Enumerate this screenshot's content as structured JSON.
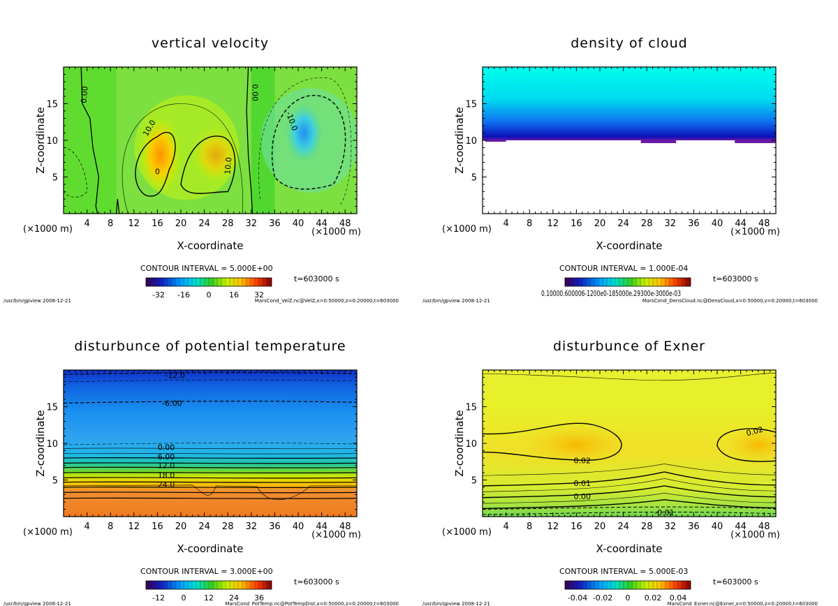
{
  "chart_data": [
    {
      "type": "heatmap",
      "title": "vertical velocity",
      "xlabel": "X-coordinate",
      "ylabel": "Z-coordinate",
      "x_unit_left": "(×1000 m)",
      "x_unit_right": "(×1000 m)",
      "xlim": [
        0,
        50
      ],
      "ylim": [
        0,
        20
      ],
      "xticks": [
        "4",
        "8",
        "12",
        "16",
        "20",
        "24",
        "28",
        "32",
        "36",
        "40",
        "44",
        "48"
      ],
      "yticks": [
        "5",
        "10",
        "15"
      ],
      "contour_labels": [
        "0.00",
        "0.00",
        "10.0",
        "10.0",
        "-10.0",
        "0"
      ],
      "contour_interval": "CONTOUR INTERVAL = 5.000E+00",
      "colorbar_ticks": [
        "-32",
        "-16",
        "0",
        "16",
        "32"
      ],
      "time": "t=603000 s",
      "footer_left": "/usr/bin/gpview  2008-12-21",
      "footer_right": "MarsCond_VelZ.nc@VelZ,x=0:50000,z=0:20000,t=603000"
    },
    {
      "type": "heatmap",
      "title": "density of cloud",
      "xlabel": "X-coordinate",
      "ylabel": "Z-coordinate",
      "x_unit_left": "(×1000 m)",
      "x_unit_right": "(×1000 m)",
      "xlim": [
        0,
        50
      ],
      "ylim": [
        0,
        20
      ],
      "xticks": [
        "4",
        "8",
        "12",
        "16",
        "20",
        "24",
        "28",
        "32",
        "36",
        "40",
        "44",
        "48"
      ],
      "yticks": [
        "5",
        "10",
        "15"
      ],
      "cloud_base_km": 10,
      "contour_interval": "CONTOUR INTERVAL = 1.000E-04",
      "colorbar_label": "0.10000.600006-1200e0-185000e.29300e-3000e-03",
      "time": "t=603000 s",
      "footer_left": "/usr/bin/gpview  2008-12-21",
      "footer_right": "MarsCond_DensCloud.nc@DensCloud,x=0:50000,z=0:20000,t=603000"
    },
    {
      "type": "heatmap",
      "title": "disturbunce of potential temperature",
      "xlabel": "X-coordinate",
      "ylabel": "Z-coordinate",
      "x_unit_left": "(×1000 m)",
      "x_unit_right": "(×1000 m)",
      "xlim": [
        0,
        50
      ],
      "ylim": [
        0,
        20
      ],
      "xticks": [
        "4",
        "8",
        "12",
        "16",
        "20",
        "24",
        "28",
        "32",
        "36",
        "40",
        "44",
        "48"
      ],
      "yticks": [
        "5",
        "10",
        "15"
      ],
      "contour_labels": [
        "-12.0",
        "-6.00",
        "0.00",
        "6.00",
        "12.0",
        "18.0",
        "24.0"
      ],
      "contour_interval": "CONTOUR INTERVAL = 3.000E+00",
      "colorbar_ticks": [
        "-12",
        "0",
        "12",
        "24",
        "36"
      ],
      "time": "t=603000 s",
      "footer_left": "/usr/bin/gpview  2008-12-21",
      "footer_right": "MarsCond_PotTemp.nc@PotTempDist,x=0:50000,z=0:20000,t=603000"
    },
    {
      "type": "heatmap",
      "title": "disturbunce of Exner",
      "xlabel": "X-coordinate",
      "ylabel": "Z-coordinate",
      "x_unit_left": "(×1000 m)",
      "x_unit_right": "(×1000 m)",
      "xlim": [
        0,
        50
      ],
      "ylim": [
        0,
        20
      ],
      "xticks": [
        "4",
        "8",
        "12",
        "16",
        "20",
        "24",
        "28",
        "32",
        "36",
        "40",
        "44",
        "48"
      ],
      "yticks": [
        "5",
        "10",
        "15"
      ],
      "contour_labels": [
        "0.02",
        "0.02",
        "0.01",
        "0.00",
        "-0.01"
      ],
      "contour_interval": "CONTOUR INTERVAL = 5.000E-03",
      "colorbar_ticks": [
        "-0.04",
        "-0.02",
        "0",
        "0.02",
        "0.04"
      ],
      "time": "t=603000 s",
      "footer_left": "/usr/bin/gpview  2008-12-21",
      "footer_right": "MarsCond_Exner.nc@Exner,x=0:50000,z=0:20000,t=603000"
    }
  ]
}
